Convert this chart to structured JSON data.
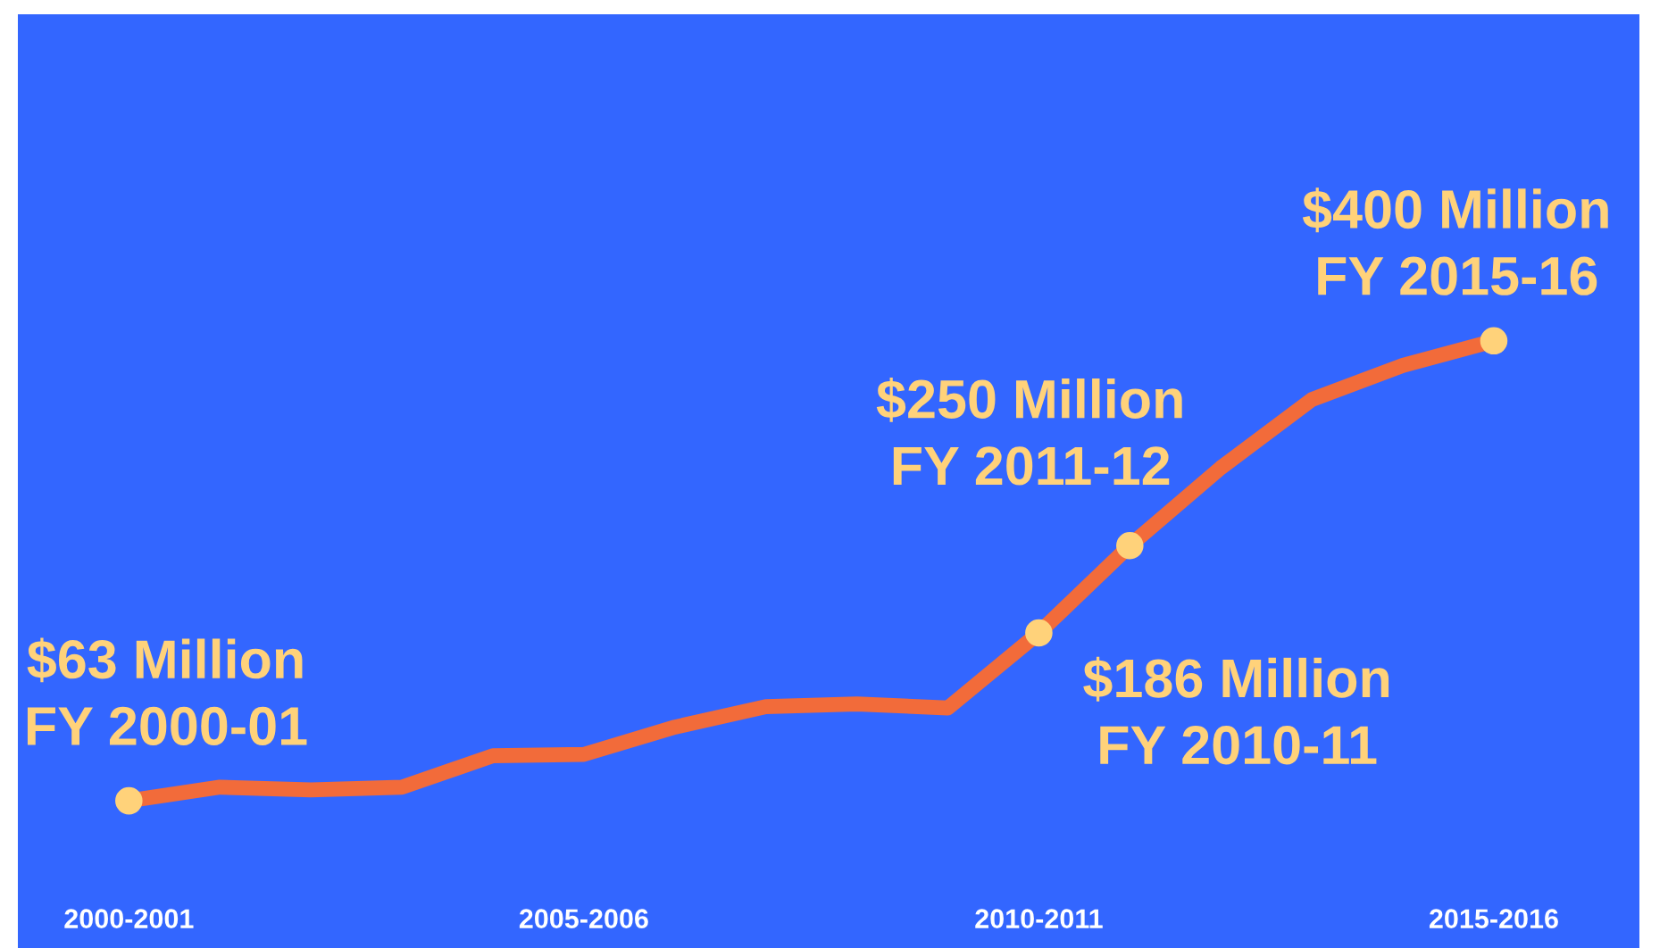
{
  "chart_data": {
    "type": "line",
    "categories": [
      "2000-2001",
      null,
      null,
      null,
      null,
      "2005-2006",
      null,
      null,
      null,
      null,
      "2010-2011",
      null,
      null,
      null,
      null,
      "2015-2016"
    ],
    "series": [
      {
        "color": "#f26b3a",
        "values": [
          63,
          73,
          71,
          73,
          96,
          97,
          117,
          132,
          134,
          131,
          186,
          250,
          307,
          357,
          382,
          400
        ],
        "value_labels": [
          "$63 Million\nFY 2000-01",
          null,
          null,
          null,
          null,
          null,
          null,
          null,
          null,
          null,
          "$186 Million\nFY 2010-11",
          "$250 Million\nFY 2011-12",
          null,
          null,
          null,
          "$400 Million\nFY 2015-16"
        ]
      }
    ],
    "line_style": "solid",
    "grid": false,
    "legend": false
  }
}
